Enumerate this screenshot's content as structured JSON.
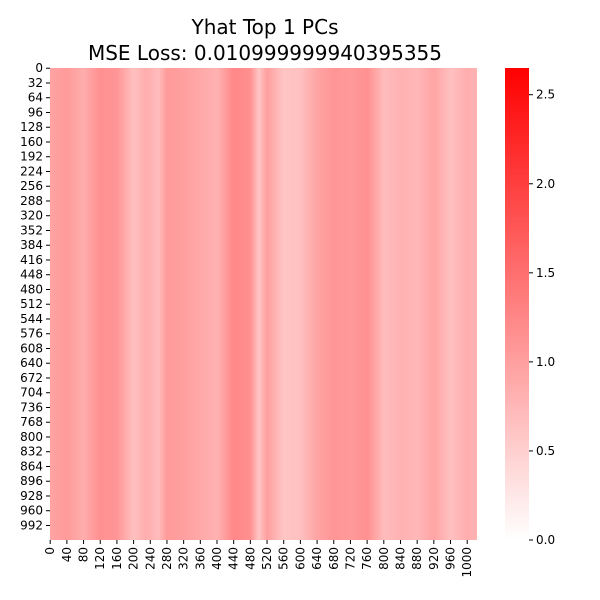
{
  "chart_data": {
    "type": "heatmap",
    "title_line1": "Yhat Top 1 PCs",
    "title_line2": "MSE Loss: 0.010999999940395355",
    "xlabel": "",
    "ylabel": "",
    "x_tick_labels": [
      "0",
      "40",
      "80",
      "120",
      "160",
      "200",
      "240",
      "280",
      "320",
      "360",
      "400",
      "440",
      "480",
      "520",
      "560",
      "600",
      "640",
      "680",
      "720",
      "760",
      "800",
      "840",
      "880",
      "920",
      "960",
      "1000"
    ],
    "y_tick_labels": [
      "0",
      "32",
      "64",
      "96",
      "128",
      "160",
      "192",
      "224",
      "256",
      "288",
      "320",
      "352",
      "384",
      "416",
      "448",
      "480",
      "512",
      "544",
      "576",
      "608",
      "640",
      "672",
      "704",
      "736",
      "768",
      "800",
      "832",
      "864",
      "896",
      "928",
      "960",
      "992"
    ],
    "n_columns": 1024,
    "n_rows": 1024,
    "colorbar": {
      "range": [
        0,
        2.65
      ],
      "ticks": [
        "0.0",
        "0.5",
        "1.0",
        "1.5",
        "2.0",
        "2.5"
      ],
      "color_low": "#ffffff",
      "color_high": "#ff0000"
    },
    "column_profile": [
      {
        "x": 0,
        "value": 0.95
      },
      {
        "x": 40,
        "value": 1.05
      },
      {
        "x": 80,
        "value": 0.85
      },
      {
        "x": 120,
        "value": 1.15
      },
      {
        "x": 160,
        "value": 1.1
      },
      {
        "x": 200,
        "value": 0.65
      },
      {
        "x": 230,
        "value": 0.85
      },
      {
        "x": 260,
        "value": 0.7
      },
      {
        "x": 280,
        "value": 1.05
      },
      {
        "x": 320,
        "value": 1.0
      },
      {
        "x": 360,
        "value": 0.9
      },
      {
        "x": 400,
        "value": 0.8
      },
      {
        "x": 440,
        "value": 1.25
      },
      {
        "x": 480,
        "value": 1.15
      },
      {
        "x": 500,
        "value": 0.6
      },
      {
        "x": 520,
        "value": 1.0
      },
      {
        "x": 560,
        "value": 0.6
      },
      {
        "x": 600,
        "value": 0.65
      },
      {
        "x": 640,
        "value": 0.95
      },
      {
        "x": 680,
        "value": 1.1
      },
      {
        "x": 720,
        "value": 1.05
      },
      {
        "x": 760,
        "value": 1.15
      },
      {
        "x": 800,
        "value": 0.7
      },
      {
        "x": 840,
        "value": 0.8
      },
      {
        "x": 880,
        "value": 0.75
      },
      {
        "x": 920,
        "value": 0.95
      },
      {
        "x": 960,
        "value": 0.65
      },
      {
        "x": 1000,
        "value": 0.85
      },
      {
        "x": 1023,
        "value": 0.8
      }
    ]
  }
}
